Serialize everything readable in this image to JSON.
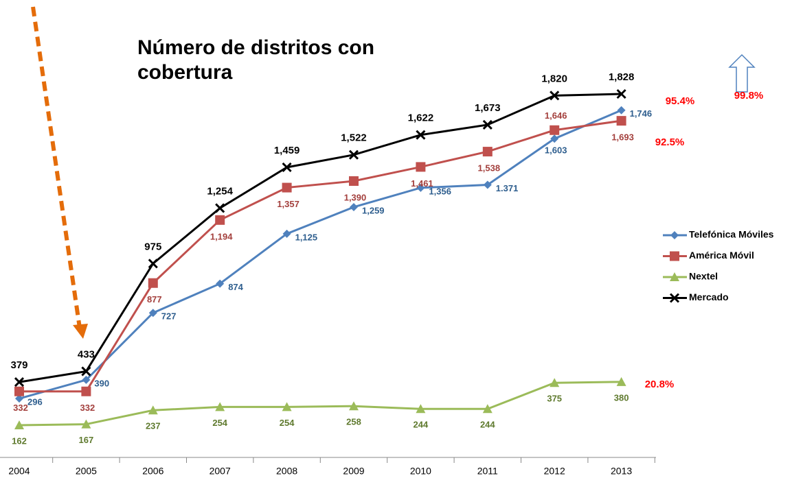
{
  "chart_data": {
    "type": "line",
    "title": "Número de distritos con cobertura",
    "categories": [
      "2004",
      "2005",
      "2006",
      "2007",
      "2008",
      "2009",
      "2010",
      "2011",
      "2012",
      "2013"
    ],
    "series": [
      {
        "name": "Telefónica Móviles",
        "color": "#4f81bd",
        "values": [
          296,
          390,
          727,
          874,
          1125,
          1259,
          1356,
          1371,
          1603,
          1746
        ],
        "value_labels": [
          "296",
          "390",
          "727",
          "874",
          "1,125",
          "1,259",
          "1,356",
          "1.371",
          "1,603",
          "1,746"
        ]
      },
      {
        "name": "América Móvil",
        "color": "#c0504d",
        "values": [
          332,
          332,
          877,
          1194,
          1357,
          1390,
          1461,
          1538,
          1646,
          1693
        ],
        "value_labels": [
          "332",
          "332",
          "877",
          "1,194",
          "1,357",
          "1,390",
          "1,461",
          "1,538",
          "1,646",
          "1,693"
        ]
      },
      {
        "name": "Nextel",
        "color": "#9bbb59",
        "values": [
          162,
          167,
          237,
          254,
          254,
          258,
          244,
          244,
          375,
          380
        ]
      },
      {
        "name": "Mercado",
        "color": "#000000",
        "values": [
          379,
          433,
          975,
          1254,
          1459,
          1522,
          1622,
          1673,
          1820,
          1828
        ],
        "value_labels": [
          "379",
          "433",
          "975",
          "1,254",
          "1,459",
          "1,522",
          "1,622",
          "1,673",
          "1,820",
          "1,828"
        ]
      }
    ],
    "annotations": [
      "95.4%",
      "99.8%",
      "92.5%",
      "20.8%"
    ]
  }
}
